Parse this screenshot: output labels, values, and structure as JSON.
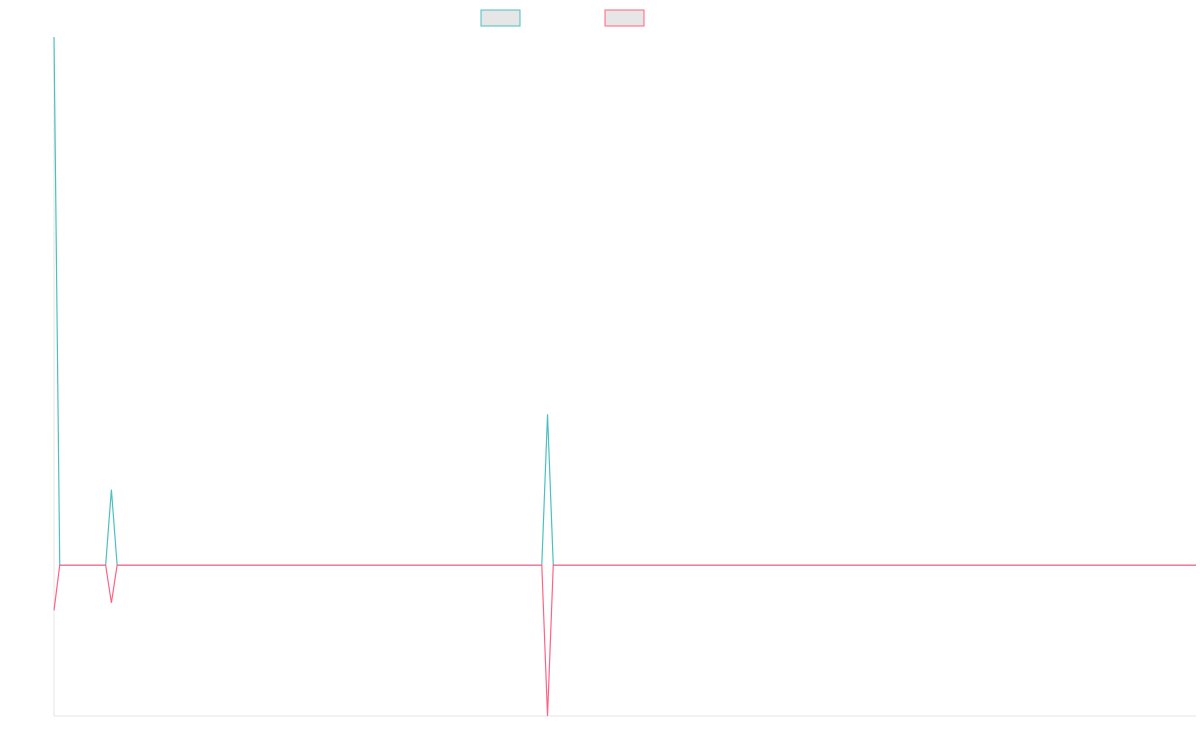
{
  "chart_data": {
    "type": "line",
    "title": "",
    "xlabel": "",
    "ylabel": "",
    "grid": false,
    "legend_position": "top-center",
    "colors": {
      "series_1": "#4bc0c0",
      "series_2": "#ff6384",
      "axis": "#e6e6e6",
      "legend_fill": "#e6e6e6"
    },
    "x_count": 200,
    "ylim": [
      -200,
      700
    ],
    "series": [
      {
        "color": "#4bc0c0",
        "points": [
          [
            0,
            700
          ],
          [
            1,
            0
          ],
          [
            9,
            0
          ],
          [
            10,
            100
          ],
          [
            11,
            0
          ],
          [
            85,
            0
          ],
          [
            86,
            200
          ],
          [
            87,
            0
          ],
          [
            199,
            0
          ]
        ]
      },
      {
        "color": "#ff6384",
        "points": [
          [
            0,
            -60
          ],
          [
            1,
            0
          ],
          [
            9,
            0
          ],
          [
            10,
            -50
          ],
          [
            11,
            0
          ],
          [
            85,
            0
          ],
          [
            86,
            -200
          ],
          [
            87,
            0
          ],
          [
            199,
            0
          ]
        ]
      }
    ]
  }
}
